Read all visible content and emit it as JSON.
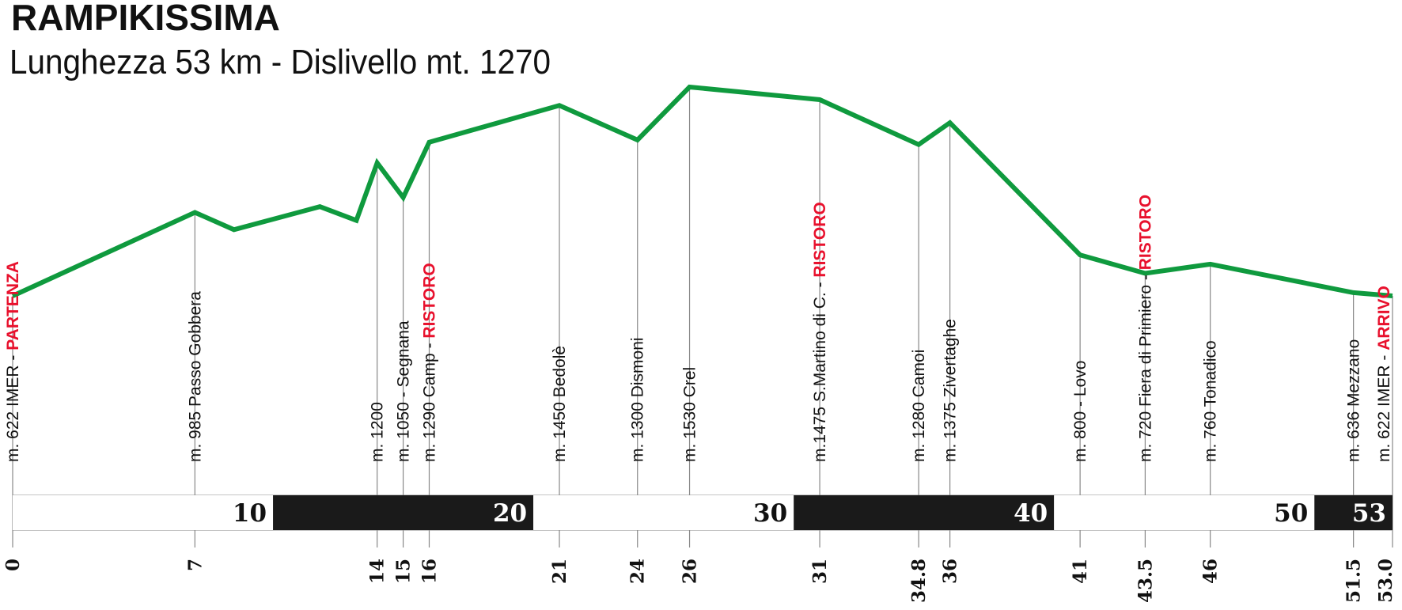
{
  "chart_data": {
    "type": "line",
    "title": "RAMPIKISSIMA",
    "subtitle": "Lunghezza 53 km - Dislivello mt. 1270",
    "xlabel": "",
    "ylabel": "",
    "line_color": "#0f9a3e",
    "highlight_color": "#e8112d",
    "xlim": [
      0,
      53
    ],
    "profile": [
      {
        "x": 0,
        "y": 622
      },
      {
        "x": 7,
        "y": 985
      },
      {
        "x": 8.5,
        "y": 910
      },
      {
        "x": 11.8,
        "y": 1010
      },
      {
        "x": 13.2,
        "y": 950
      },
      {
        "x": 14,
        "y": 1200
      },
      {
        "x": 15,
        "y": 1050
      },
      {
        "x": 16,
        "y": 1290
      },
      {
        "x": 21,
        "y": 1450
      },
      {
        "x": 24,
        "y": 1300
      },
      {
        "x": 26,
        "y": 1530
      },
      {
        "x": 31,
        "y": 1475
      },
      {
        "x": 34.8,
        "y": 1280
      },
      {
        "x": 36,
        "y": 1375
      },
      {
        "x": 41,
        "y": 800
      },
      {
        "x": 43.5,
        "y": 720
      },
      {
        "x": 46,
        "y": 760
      },
      {
        "x": 51.5,
        "y": 636
      },
      {
        "x": 53,
        "y": 622
      }
    ],
    "waypoints": [
      {
        "km": 0,
        "km_label": "0",
        "label": "m. 622 IMER - ",
        "extra": "PARTENZA"
      },
      {
        "km": 7,
        "km_label": "7",
        "label": "m. 985 Passo Gobbera",
        "extra": ""
      },
      {
        "km": 14,
        "km_label": "14",
        "label": "m. 1200",
        "extra": ""
      },
      {
        "km": 15,
        "km_label": "15",
        "label": "m. 1050 - Segnana",
        "extra": ""
      },
      {
        "km": 16,
        "km_label": "16",
        "label": "m. 1290 Camp - ",
        "extra": "RISTORO"
      },
      {
        "km": 21,
        "km_label": "21",
        "label": "m. 1450 Bedolè",
        "extra": ""
      },
      {
        "km": 24,
        "km_label": "24",
        "label": "m. 1300 Dismoni",
        "extra": ""
      },
      {
        "km": 26,
        "km_label": "26",
        "label": "m. 1530 Crel",
        "extra": ""
      },
      {
        "km": 31,
        "km_label": "31",
        "label": "m.1475 S.Martino di C. - ",
        "extra": "RISTORO"
      },
      {
        "km": 34.8,
        "km_label": "34.8",
        "label": "m. 1280 Camoi",
        "extra": ""
      },
      {
        "km": 36,
        "km_label": "36",
        "label": "m. 1375 Zivertaghe",
        "extra": ""
      },
      {
        "km": 41,
        "km_label": "41",
        "label": "m. 800 - Lovo",
        "extra": ""
      },
      {
        "km": 43.5,
        "km_label": "43.5",
        "label": "m. 720 Fiera di Primiero - ",
        "extra": "RISTORO"
      },
      {
        "km": 46,
        "km_label": "46",
        "label": "m. 760 Tonadico",
        "extra": ""
      },
      {
        "km": 51.5,
        "km_label": "51.5",
        "label": "m. 636 Mezzano",
        "extra": ""
      },
      {
        "km": 53,
        "km_label": "53.0",
        "label": "m. 622 IMER - ",
        "extra": "ARRIVO"
      }
    ],
    "scale_segments": [
      {
        "from": 0,
        "to": 10,
        "label": "10",
        "dark": false
      },
      {
        "from": 10,
        "to": 20,
        "label": "20",
        "dark": true
      },
      {
        "from": 20,
        "to": 30,
        "label": "30",
        "dark": false
      },
      {
        "from": 30,
        "to": 40,
        "label": "40",
        "dark": true
      },
      {
        "from": 40,
        "to": 50,
        "label": "50",
        "dark": false
      },
      {
        "from": 50,
        "to": 53,
        "label": "53",
        "dark": true
      }
    ]
  }
}
